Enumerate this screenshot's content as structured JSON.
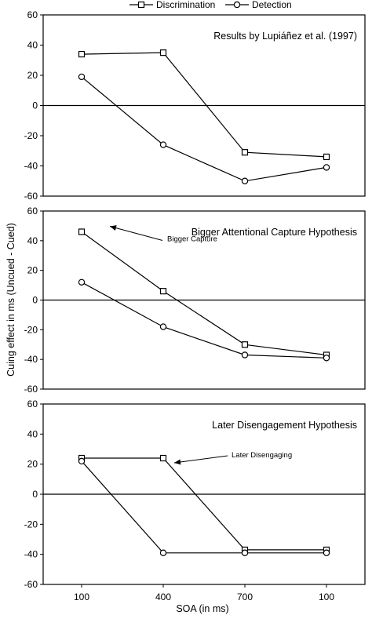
{
  "legend": {
    "placement": "top-center",
    "series_1": "Discrimination",
    "series_2": "Detection"
  },
  "ylabel": "Cuing effect in ms (Uncued - Cued)",
  "xlabel": "SOA (in ms)",
  "chart_data": [
    {
      "type": "line",
      "title": "Results by Lupiáñez et al. (1997)",
      "categories": [
        "100",
        "400",
        "700",
        "100"
      ],
      "ylim": [
        -60,
        60
      ],
      "yticks": [
        "60",
        "40",
        "20",
        "0",
        "-20",
        "-40",
        "-60"
      ],
      "zero_line": true,
      "grid": false,
      "series": [
        {
          "name": "Discrimination",
          "marker": "square",
          "values": [
            34,
            35,
            -31,
            -34
          ]
        },
        {
          "name": "Detection",
          "marker": "circle",
          "values": [
            19,
            -26,
            -50,
            -41
          ]
        }
      ]
    },
    {
      "type": "line",
      "title": "Bigger Attentional Capture Hypothesis",
      "categories": [
        "100",
        "400",
        "700",
        "100"
      ],
      "ylim": [
        -60,
        60
      ],
      "yticks": [
        "60",
        "40",
        "20",
        "0",
        "-20",
        "-40",
        "-60"
      ],
      "zero_line": true,
      "grid": false,
      "annotation": {
        "text": "Bigger Capture",
        "series": 0,
        "point": 0
      },
      "series": [
        {
          "name": "Discrimination",
          "marker": "square",
          "values": [
            46,
            6,
            -30,
            -37
          ]
        },
        {
          "name": "Detection",
          "marker": "circle",
          "values": [
            12,
            -18,
            -37,
            -39
          ]
        }
      ]
    },
    {
      "type": "line",
      "title": "Later Disengagement Hypothesis",
      "categories": [
        "100",
        "400",
        "700",
        "100"
      ],
      "ylim": [
        -60,
        60
      ],
      "yticks": [
        "60",
        "40",
        "20",
        "0",
        "-20",
        "-40",
        "-60"
      ],
      "zero_line": true,
      "grid": false,
      "annotation": {
        "text": "Later Disengaging",
        "series": 0,
        "point": 1
      },
      "series": [
        {
          "name": "Discrimination",
          "marker": "square",
          "values": [
            24,
            24,
            -37,
            -37
          ]
        },
        {
          "name": "Detection",
          "marker": "circle",
          "values": [
            22,
            -39,
            -39,
            -39
          ]
        }
      ]
    }
  ]
}
